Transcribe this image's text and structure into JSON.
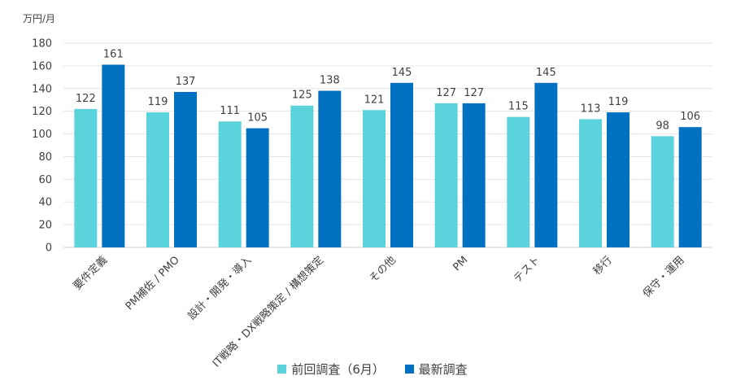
{
  "chart_data": {
    "type": "bar",
    "unit_label": "万円/月",
    "categories": [
      "要件定義",
      "PM補佐 / PMO",
      "設計・開発・導入",
      "IT戦略・DX戦略策定 / 構想策定",
      "その他",
      "PM",
      "テスト",
      "移行",
      "保守・運用"
    ],
    "series": [
      {
        "name": "前回調査（6月）",
        "color": "#5bd3dc",
        "values": [
          122,
          119,
          111,
          125,
          121,
          127,
          115,
          113,
          98
        ]
      },
      {
        "name": "最新調査",
        "color": "#0070c0",
        "values": [
          161,
          137,
          105,
          138,
          145,
          127,
          145,
          119,
          106
        ]
      }
    ],
    "ylim": [
      0,
      180
    ],
    "yticks": [
      0,
      20,
      40,
      60,
      80,
      100,
      120,
      140,
      160,
      180
    ],
    "grid": true,
    "legend_position": "bottom"
  }
}
